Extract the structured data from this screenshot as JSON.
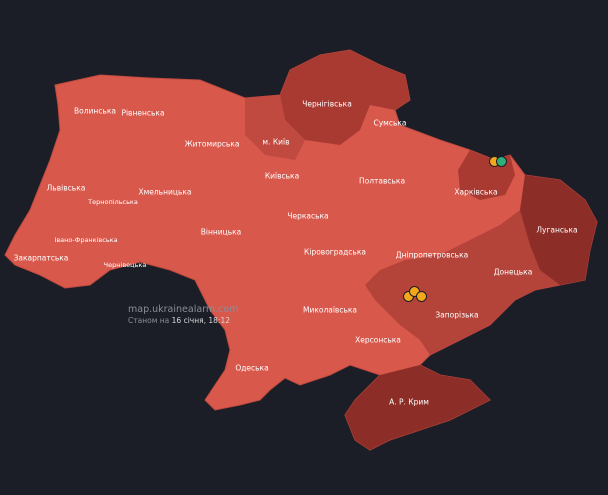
{
  "map": {
    "colors": {
      "background": "#1b1e26",
      "alert": "#d9584c",
      "alert_long": "#b4433a",
      "alert_longest": "#8c2d27",
      "marker_orange": "#f3a81c",
      "marker_green": "#2fb07a"
    },
    "regions": [
      {
        "name": "Волинська"
      },
      {
        "name": "Рівненська"
      },
      {
        "name": "Чернігівська"
      },
      {
        "name": "Сумська"
      },
      {
        "name": "Житомирська"
      },
      {
        "name": "м. Київ"
      },
      {
        "name": "Київська"
      },
      {
        "name": "Львівська"
      },
      {
        "name": "Хмельницька"
      },
      {
        "name": "Тернопільська"
      },
      {
        "name": "Полтавська"
      },
      {
        "name": "Харківська"
      },
      {
        "name": "Черкаська"
      },
      {
        "name": "Луганська"
      },
      {
        "name": "Вінницька"
      },
      {
        "name": "Івано-Франківська"
      },
      {
        "name": "Кіровоградська"
      },
      {
        "name": "Дніпропетровська"
      },
      {
        "name": "Закарпатська"
      },
      {
        "name": "Чернівецька"
      },
      {
        "name": "Донецька"
      },
      {
        "name": "Миколаївська"
      },
      {
        "name": "Запорізька"
      },
      {
        "name": "Херсонська"
      },
      {
        "name": "Одеська"
      },
      {
        "name": "А. Р. Крим"
      }
    ],
    "credit": "map.ukrainealarm.com",
    "stamp_prefix": "Станом на",
    "stamp_value": "16 січня, 18:12"
  }
}
